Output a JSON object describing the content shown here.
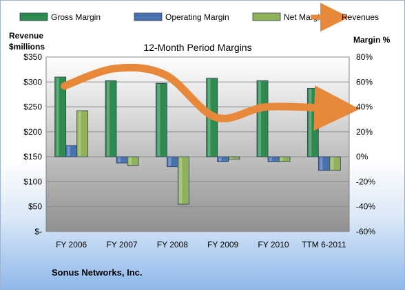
{
  "chart_data": {
    "type": "bar",
    "title": "12-Month Period Margins",
    "categories": [
      "FY 2006",
      "FY 2007",
      "FY 2008",
      "FY 2009",
      "FY 2010",
      "TTM 6-2011"
    ],
    "left_axis": {
      "label_line1": "Revenue",
      "label_line2": "$millions",
      "ylim": [
        0,
        350
      ],
      "ticks": [
        {
          "value": 0,
          "label": "$-"
        },
        {
          "value": 50,
          "label": "$50"
        },
        {
          "value": 100,
          "label": "$100"
        },
        {
          "value": 150,
          "label": "$150"
        },
        {
          "value": 200,
          "label": "$200"
        },
        {
          "value": 250,
          "label": "$250"
        },
        {
          "value": 300,
          "label": "$300"
        },
        {
          "value": 350,
          "label": "$350"
        }
      ]
    },
    "right_axis": {
      "label": "Margin %",
      "ylim": [
        -60,
        80
      ],
      "ticks": [
        {
          "value": -60,
          "label": "-60%"
        },
        {
          "value": -40,
          "label": "-40%"
        },
        {
          "value": -20,
          "label": "-20%"
        },
        {
          "value": 0,
          "label": "0%"
        },
        {
          "value": 20,
          "label": "20%"
        },
        {
          "value": 40,
          "label": "40%"
        },
        {
          "value": 60,
          "label": "60%"
        },
        {
          "value": 80,
          "label": "80%"
        }
      ]
    },
    "series": [
      {
        "name": "Gross Margin",
        "kind": "bar",
        "axis": "right",
        "color": "#2e8b4f",
        "values": [
          64,
          61,
          59,
          63,
          61,
          55
        ]
      },
      {
        "name": "Operating Margin",
        "kind": "bar",
        "axis": "right",
        "color": "#4a72b0",
        "values": [
          9,
          -5,
          -8,
          -4,
          -4,
          -11
        ]
      },
      {
        "name": "Net Margin",
        "kind": "bar",
        "axis": "right",
        "color": "#8fb25a",
        "values": [
          37,
          -7,
          -38,
          -2,
          -4,
          -11
        ]
      },
      {
        "name": "Revenues",
        "kind": "line",
        "axis": "left",
        "color": "#e8883a",
        "values": [
          292,
          327,
          314,
          229,
          250,
          247
        ]
      }
    ],
    "grid": true,
    "legend": "top"
  },
  "footer": {
    "company": "Sonus Networks, Inc."
  }
}
